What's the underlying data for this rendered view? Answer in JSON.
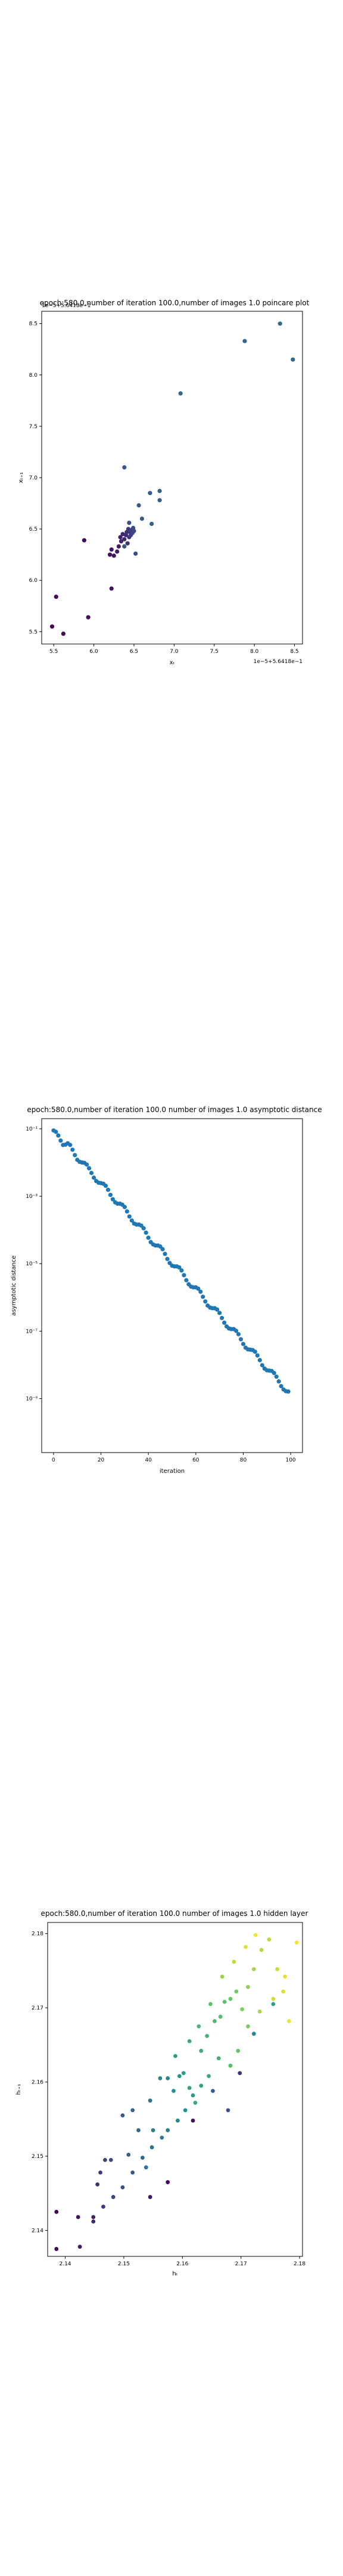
{
  "chart_data": [
    {
      "type": "scatter",
      "title": "epoch:580.0,number of iteration 100.0,number of images 1.0 poincare plot",
      "offset_label_x": "1e−5+5.6418e−1",
      "offset_label_y": "1e−5+5.6418e−1",
      "xlabel": "xₜ",
      "ylabel": "xₜ₊₁",
      "xlim": [
        5.35,
        8.6
      ],
      "ylim": [
        5.38,
        8.62
      ],
      "x_ticks": [
        5.5,
        6.0,
        6.5,
        7.0,
        7.5,
        8.0,
        8.5
      ],
      "x_tick_labels": [
        "5.5",
        "6.0",
        "6.5",
        "7.0",
        "7.5",
        "8.0",
        "8.5"
      ],
      "y_ticks": [
        5.5,
        6.0,
        6.5,
        7.0,
        7.5,
        8.0,
        8.5
      ],
      "y_tick_labels": [
        "5.5",
        "6.0",
        "6.5",
        "7.0",
        "7.5",
        "8.0",
        "8.5"
      ],
      "colormap": "viridis",
      "points": [
        [
          5.48,
          5.55,
          0.0
        ],
        [
          5.53,
          5.84,
          0.02
        ],
        [
          5.62,
          5.48,
          0.04
        ],
        [
          5.88,
          6.39,
          0.06
        ],
        [
          5.93,
          5.64,
          0.08
        ],
        [
          6.22,
          5.92,
          0.1
        ],
        [
          6.2,
          6.25,
          0.12
        ],
        [
          6.22,
          6.3,
          0.14
        ],
        [
          6.25,
          6.24,
          0.16
        ],
        [
          6.29,
          6.28,
          0.18
        ],
        [
          6.31,
          6.33,
          0.2
        ],
        [
          6.33,
          6.42,
          0.22
        ],
        [
          6.34,
          6.38,
          0.24
        ],
        [
          6.36,
          6.45,
          0.26
        ],
        [
          6.38,
          6.4,
          0.28
        ],
        [
          6.4,
          6.44,
          0.3
        ],
        [
          6.41,
          6.47,
          0.32
        ],
        [
          6.42,
          6.36,
          0.34
        ],
        [
          6.43,
          6.5,
          0.36
        ],
        [
          6.44,
          6.42,
          0.38
        ],
        [
          6.45,
          6.47,
          0.4
        ],
        [
          6.46,
          6.44,
          0.42
        ],
        [
          6.47,
          6.49,
          0.44
        ],
        [
          6.48,
          6.46,
          0.46
        ],
        [
          6.49,
          6.51,
          0.48
        ],
        [
          6.5,
          6.48,
          0.5
        ],
        [
          6.44,
          6.56,
          0.52
        ],
        [
          6.52,
          6.26,
          0.54
        ],
        [
          6.38,
          6.33,
          0.56
        ],
        [
          6.38,
          7.1,
          0.58
        ],
        [
          6.56,
          6.73,
          0.6
        ],
        [
          6.6,
          6.6,
          0.62
        ],
        [
          6.7,
          6.85,
          0.64
        ],
        [
          6.72,
          6.55,
          0.66
        ],
        [
          6.82,
          6.87,
          0.68
        ],
        [
          6.82,
          6.78,
          0.7
        ],
        [
          7.08,
          7.82,
          0.72
        ],
        [
          7.88,
          8.33,
          0.74
        ],
        [
          8.32,
          8.5,
          0.76
        ],
        [
          8.48,
          8.15,
          0.78
        ]
      ]
    },
    {
      "type": "scatter",
      "title": "epoch:580.0,number of iteration 100.0  number of images 1.0 asymptotic distance",
      "xlabel": "iteration",
      "ylabel": "asymptotic distance",
      "yscale": "log",
      "xlim": [
        -5,
        105
      ],
      "ylim_exp": [
        -10.6,
        -0.7
      ],
      "x_ticks": [
        0,
        20,
        40,
        60,
        80,
        100
      ],
      "x_tick_labels": [
        "0",
        "20",
        "40",
        "60",
        "80",
        "100"
      ],
      "y_ticks_exp": [
        -1,
        -3,
        -5,
        -7,
        -9
      ],
      "y_tick_labels": [
        "10⁻¹",
        "10⁻³",
        "10⁻⁵",
        "10⁻⁷",
        "10⁻⁹"
      ],
      "color": "#1f77b4",
      "x": [
        0,
        1,
        2,
        3,
        4,
        5,
        6,
        7,
        8,
        9,
        10,
        11,
        12,
        13,
        14,
        15,
        16,
        17,
        18,
        19,
        20,
        21,
        22,
        23,
        24,
        25,
        26,
        27,
        28,
        29,
        30,
        31,
        32,
        33,
        34,
        35,
        36,
        37,
        38,
        39,
        40,
        41,
        42,
        43,
        44,
        45,
        46,
        47,
        48,
        49,
        50,
        51,
        52,
        53,
        54,
        55,
        56,
        57,
        58,
        59,
        60,
        61,
        62,
        63,
        64,
        65,
        66,
        67,
        68,
        69,
        70,
        71,
        72,
        73,
        74,
        75,
        76,
        77,
        78,
        79,
        80,
        81,
        82,
        83,
        84,
        85,
        86,
        87,
        88,
        89,
        90,
        91,
        92,
        93,
        94,
        95,
        96,
        97,
        98,
        99
      ],
      "log10_y": [
        -1.05,
        -1.09,
        -1.2,
        -1.35,
        -1.48,
        -1.47,
        -1.43,
        -1.48,
        -1.62,
        -1.78,
        -1.92,
        -1.98,
        -2.0,
        -2.01,
        -2.06,
        -2.17,
        -2.31,
        -2.45,
        -2.55,
        -2.6,
        -2.61,
        -2.63,
        -2.69,
        -2.81,
        -2.96,
        -3.09,
        -3.18,
        -3.22,
        -3.22,
        -3.25,
        -3.32,
        -3.45,
        -3.6,
        -3.72,
        -3.81,
        -3.84,
        -3.84,
        -3.87,
        -3.95,
        -4.08,
        -4.23,
        -4.36,
        -4.43,
        -4.46,
        -4.46,
        -4.49,
        -4.57,
        -4.71,
        -4.86,
        -4.98,
        -5.06,
        -5.08,
        -5.08,
        -5.11,
        -5.2,
        -5.34,
        -5.49,
        -5.61,
        -5.68,
        -5.7,
        -5.7,
        -5.74,
        -5.83,
        -5.98,
        -6.12,
        -6.24,
        -6.3,
        -6.32,
        -6.32,
        -6.36,
        -6.46,
        -6.61,
        -6.75,
        -6.86,
        -6.92,
        -6.94,
        -6.94,
        -6.99,
        -7.09,
        -7.24,
        -7.38,
        -7.49,
        -7.54,
        -7.55,
        -7.56,
        -7.61,
        -7.72,
        -7.86,
        -8.01,
        -8.11,
        -8.16,
        -8.17,
        -8.18,
        -8.24,
        -8.35,
        -8.49,
        -8.63,
        -8.73,
        -8.78,
        -8.79
      ]
    },
    {
      "type": "scatter",
      "title": "epoch:580.0,number of iteration 100.0  number of images 1.0 hidden layer",
      "xlabel": "hₜ",
      "ylabel": "hₜ₊₁",
      "xlim": [
        2.137,
        2.1805
      ],
      "ylim": [
        2.1365,
        2.1815
      ],
      "x_ticks": [
        2.14,
        2.15,
        2.16,
        2.17,
        2.18
      ],
      "x_tick_labels": [
        "2.14",
        "2.15",
        "2.16",
        "2.17",
        "2.18"
      ],
      "y_ticks": [
        2.14,
        2.15,
        2.16,
        2.17,
        2.18
      ],
      "y_tick_labels": [
        "2.14",
        "2.15",
        "2.16",
        "2.17",
        "2.18"
      ],
      "colormap": "viridis",
      "points": [
        [
          2.1385,
          2.1425,
          0.0
        ],
        [
          2.1385,
          2.1375,
          0.02
        ],
        [
          2.1422,
          2.1418,
          0.05
        ],
        [
          2.1425,
          2.1378,
          0.08
        ],
        [
          2.1448,
          2.1412,
          0.12
        ],
        [
          2.1455,
          2.1462,
          0.15
        ],
        [
          2.146,
          2.1478,
          0.18
        ],
        [
          2.1468,
          2.1495,
          0.2
        ],
        [
          2.1478,
          2.1495,
          0.22
        ],
        [
          2.1498,
          2.1555,
          0.28
        ],
        [
          2.1508,
          2.1502,
          0.3
        ],
        [
          2.1515,
          2.1562,
          0.32
        ],
        [
          2.1525,
          2.1535,
          0.35
        ],
        [
          2.1538,
          2.1485,
          0.38
        ],
        [
          2.1545,
          2.1575,
          0.4
        ],
        [
          2.155,
          2.1535,
          0.42
        ],
        [
          2.1562,
          2.1605,
          0.45
        ],
        [
          2.1575,
          2.1605,
          0.48
        ],
        [
          2.1585,
          2.1588,
          0.5
        ],
        [
          2.1595,
          2.1608,
          0.52
        ],
        [
          2.1602,
          2.1612,
          0.55
        ],
        [
          2.1612,
          2.1592,
          0.58
        ],
        [
          2.1622,
          2.1572,
          0.6
        ],
        [
          2.1632,
          2.1642,
          0.62
        ],
        [
          2.1642,
          2.1662,
          0.65
        ],
        [
          2.1655,
          2.1682,
          0.68
        ],
        [
          2.1665,
          2.1688,
          0.7
        ],
        [
          2.1672,
          2.1708,
          0.72
        ],
        [
          2.1682,
          2.1712,
          0.75
        ],
        [
          2.1692,
          2.1722,
          0.78
        ],
        [
          2.1702,
          2.1698,
          0.8
        ],
        [
          2.1712,
          2.1728,
          0.82
        ],
        [
          2.1722,
          2.1752,
          0.85
        ],
        [
          2.1735,
          2.1778,
          0.88
        ],
        [
          2.1748,
          2.1792,
          0.9
        ],
        [
          2.1762,
          2.1752,
          0.92
        ],
        [
          2.1772,
          2.1722,
          0.95
        ],
        [
          2.1782,
          2.1682,
          0.97
        ],
        [
          2.1795,
          2.1788,
          0.99
        ],
        [
          2.1775,
          2.1742,
          0.96
        ],
        [
          2.1755,
          2.1712,
          0.93
        ],
        [
          2.1732,
          2.1695,
          0.86
        ],
        [
          2.1712,
          2.1675,
          0.79
        ],
        [
          2.1695,
          2.1642,
          0.74
        ],
        [
          2.1682,
          2.1622,
          0.7
        ],
        [
          2.1662,
          2.1632,
          0.64
        ],
        [
          2.1645,
          2.1608,
          0.6
        ],
        [
          2.1632,
          2.1595,
          0.57
        ],
        [
          2.1618,
          2.1582,
          0.54
        ],
        [
          2.1605,
          2.1562,
          0.5
        ],
        [
          2.1592,
          2.1548,
          0.47
        ],
        [
          2.1575,
          2.1535,
          0.43
        ],
        [
          2.1565,
          2.1525,
          0.4
        ],
        [
          2.1548,
          2.1512,
          0.36
        ],
        [
          2.1532,
          2.1498,
          0.33
        ],
        [
          2.1515,
          2.1478,
          0.27
        ],
        [
          2.1498,
          2.1458,
          0.24
        ],
        [
          2.1482,
          2.1445,
          0.2
        ],
        [
          2.1465,
          2.1432,
          0.16
        ],
        [
          2.1448,
          2.1418,
          0.1
        ],
        [
          2.1588,
          2.1635,
          0.55
        ],
        [
          2.1612,
          2.1655,
          0.6
        ],
        [
          2.1628,
          2.1675,
          0.66
        ],
        [
          2.1648,
          2.1705,
          0.72
        ],
        [
          2.1668,
          2.1742,
          0.84
        ],
        [
          2.1688,
          2.1762,
          0.9
        ],
        [
          2.1708,
          2.1782,
          0.95
        ],
        [
          2.1725,
          2.1798,
          0.98
        ],
        [
          2.1652,
          2.1588,
          0.3
        ],
        [
          2.1678,
          2.1562,
          0.25
        ],
        [
          2.1698,
          2.1612,
          0.15
        ],
        [
          2.1618,
          2.1548,
          0.05
        ],
        [
          2.1575,
          2.1465,
          0.02
        ],
        [
          2.1545,
          2.1445,
          0.08
        ],
        [
          2.1722,
          2.1665,
          0.45
        ],
        [
          2.1755,
          2.1705,
          0.55
        ]
      ]
    }
  ]
}
